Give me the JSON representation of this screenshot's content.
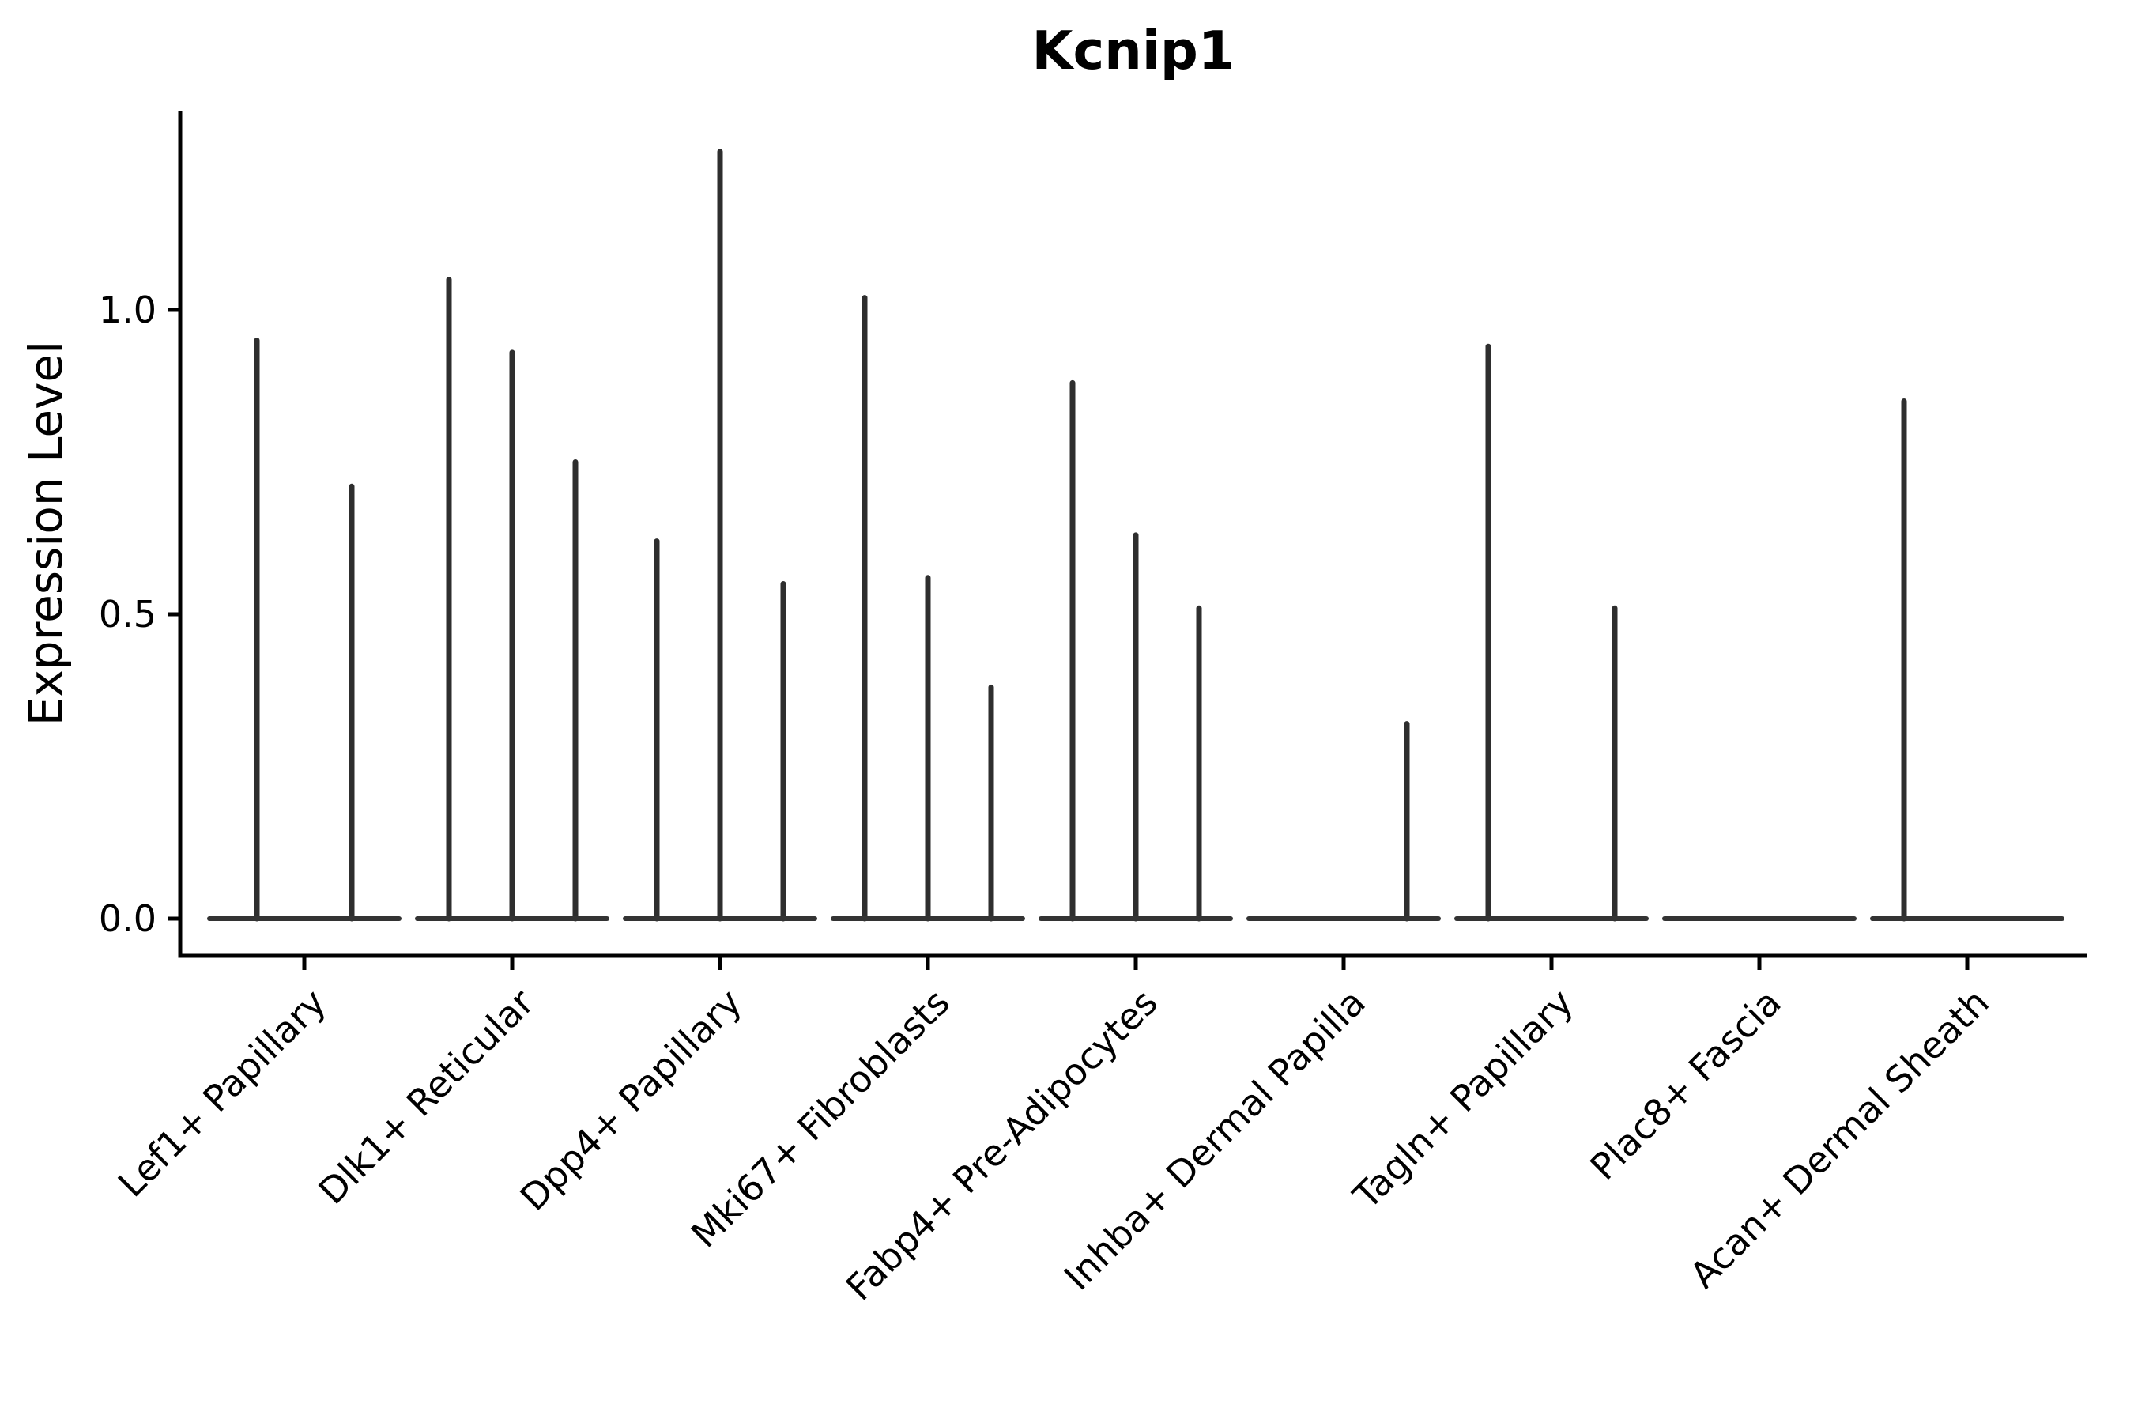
{
  "title": "Kcnip1",
  "chart_data": {
    "type": "violin",
    "title": "Kcnip1",
    "ylabel": "Expression Level",
    "xlabel": "",
    "yticks": [
      0.0,
      0.5,
      1.0
    ],
    "ytick_labels": [
      "0.0",
      "0.5",
      "1.0"
    ],
    "ylim": [
      0.0,
      1.33
    ],
    "grid": false,
    "legend": null,
    "axis_color": "#000000",
    "violin_color": "#333333",
    "spike_color": "#2e2e2e",
    "categories": [
      "Lef1+ Papillary",
      "Dlk1+ Reticular",
      "Dpp4+ Papillary",
      "Mki67+ Fibroblasts",
      "Fabp4+ Pre-Adipocytes",
      "Inhba+ Dermal Papilla",
      "Tagln+ Papillary",
      "Plac8+ Fascia",
      "Acan+ Dermal Sheath"
    ],
    "groups": [
      {
        "category": "Lef1+ Papillary",
        "violins": [
          0.95,
          0.71
        ]
      },
      {
        "category": "Dlk1+ Reticular",
        "violins": [
          1.05,
          0.93,
          0.75
        ]
      },
      {
        "category": "Dpp4+ Papillary",
        "violins": [
          0.62,
          1.26,
          0.55
        ]
      },
      {
        "category": "Mki67+ Fibroblasts",
        "violins": [
          1.02,
          0.56,
          0.38
        ]
      },
      {
        "category": "Fabp4+ Pre-Adipocytes",
        "violins": [
          0.88,
          0.63,
          0.51
        ]
      },
      {
        "category": "Inhba+ Dermal Papilla",
        "violins": [
          0,
          0,
          0.32
        ]
      },
      {
        "category": "Tagln+ Papillary",
        "violins": [
          0.94,
          0,
          0.51
        ]
      },
      {
        "category": "Plac8+ Fascia",
        "violins": [
          0,
          0,
          0
        ]
      },
      {
        "category": "Acan+ Dermal Sheath",
        "violins": [
          0.85,
          0,
          0
        ]
      }
    ]
  }
}
